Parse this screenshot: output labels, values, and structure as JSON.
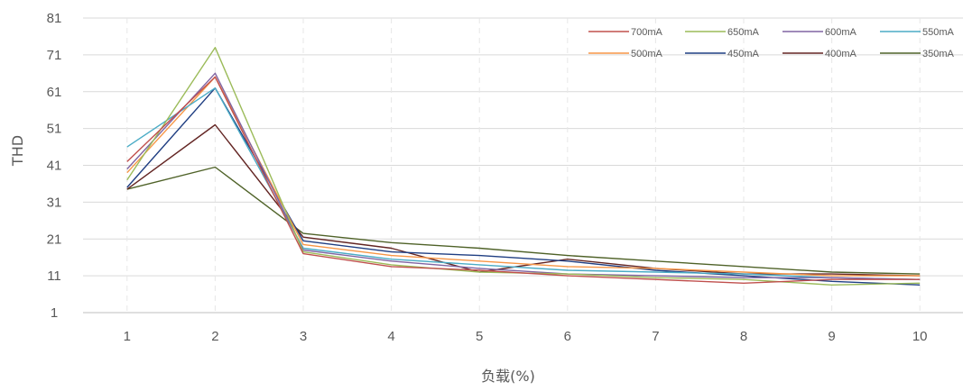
{
  "chart_data": {
    "type": "line",
    "xlabel": "负载(%)",
    "ylabel": "THD",
    "x": [
      1,
      2,
      3,
      4,
      5,
      6,
      7,
      8,
      9,
      10
    ],
    "x_ticks": [
      "1",
      "2",
      "3",
      "4",
      "5",
      "6",
      "7",
      "8",
      "9",
      "10"
    ],
    "ylim": [
      1,
      81
    ],
    "y_ticks": [
      "1",
      "11",
      "21",
      "31",
      "41",
      "51",
      "61",
      "71",
      "81"
    ],
    "grid": {
      "horizontal": true,
      "vertical_dashed": true
    },
    "legend_position": "top-right",
    "series": [
      {
        "name": "700mA",
        "color": "#c0504d",
        "values": [
          42,
          65,
          17,
          13.5,
          12.5,
          11,
          10,
          9,
          10,
          10
        ]
      },
      {
        "name": "650mA",
        "color": "#9bbb59",
        "values": [
          37,
          73,
          17.5,
          14,
          12,
          11.5,
          10.5,
          10,
          8.5,
          9
        ]
      },
      {
        "name": "600mA",
        "color": "#8064a2",
        "values": [
          40,
          66,
          18,
          15,
          13,
          11.5,
          11,
          10.5,
          10.5,
          10
        ]
      },
      {
        "name": "550mA",
        "color": "#4bacc6",
        "values": [
          46,
          62,
          18.5,
          15.5,
          14,
          12.5,
          12,
          11.5,
          10.5,
          10
        ]
      },
      {
        "name": "500mA",
        "color": "#f79646",
        "values": [
          39,
          65,
          19.5,
          16.5,
          15,
          13.5,
          13,
          12,
          11,
          11
        ]
      },
      {
        "name": "450mA",
        "color": "#1f3e82",
        "values": [
          35,
          62,
          20.5,
          17.5,
          16.5,
          15,
          12.5,
          11,
          9.5,
          8.5
        ]
      },
      {
        "name": "400mA",
        "color": "#632523",
        "values": [
          34.5,
          52,
          21.5,
          18.5,
          12,
          15.5,
          13,
          11.5,
          11.5,
          11
        ]
      },
      {
        "name": "350mA",
        "color": "#4f6228",
        "values": [
          34.5,
          40.5,
          22.5,
          20,
          18.5,
          16.5,
          15,
          13.5,
          12,
          11.5
        ]
      }
    ]
  }
}
